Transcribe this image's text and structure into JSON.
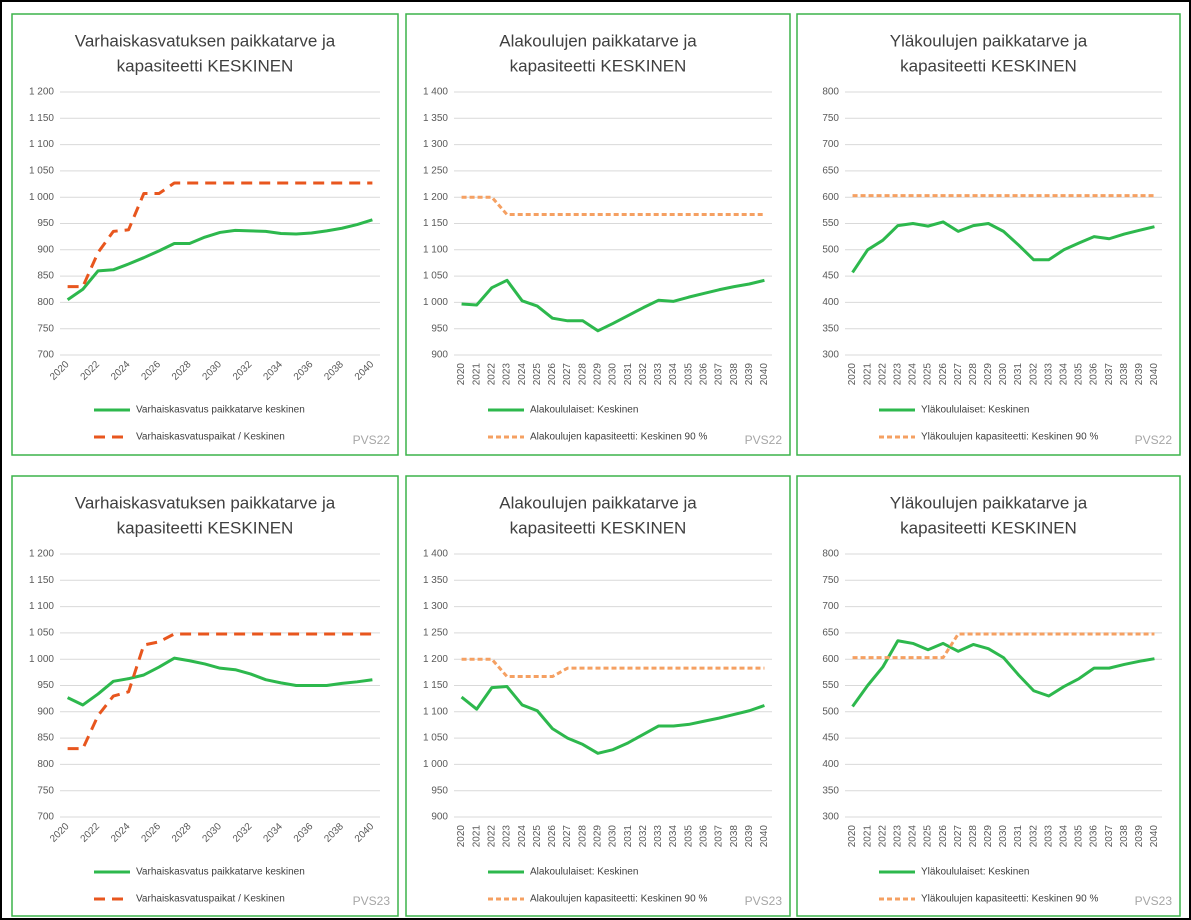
{
  "chart_data": [
    {
      "type": "line",
      "title": [
        "Varhaiskasvatuksen paikkatarve ja",
        "kapasiteetti KESKINEN"
      ],
      "note": "PVS22",
      "categories": [
        "2020",
        null,
        "2022",
        null,
        "2024",
        null,
        "2026",
        null,
        "2028",
        null,
        "2030",
        null,
        "2032",
        null,
        "2034",
        null,
        "2036",
        null,
        "2038",
        null,
        "2040"
      ],
      "ylim": [
        700,
        1200
      ],
      "yticks": [
        700,
        750,
        800,
        850,
        900,
        950,
        {
          "value": 1000,
          "label": "1 000"
        },
        {
          "value": 1050,
          "label": "1 050"
        },
        {
          "value": 1100,
          "label": "1 100"
        },
        {
          "value": 1150,
          "label": "1 150"
        },
        {
          "value": 1200,
          "label": "1 200"
        }
      ],
      "grid": true,
      "series": [
        {
          "name": "Varhaiskasvatus paikkatarve keskinen",
          "color": "#2db84d",
          "line_style": "solid",
          "values": [
            805,
            825,
            860,
            862,
            873,
            885,
            898,
            912,
            912,
            924,
            933,
            937,
            936,
            935,
            931,
            930,
            932,
            936,
            941,
            948,
            957
          ]
        },
        {
          "name": "Varhaiskasvatuspaikat / Keskinen",
          "color": "#e8561e",
          "line_style": "dashed",
          "values": [
            830,
            830,
            895,
            935,
            938,
            1007,
            1007,
            1027,
            1027,
            1027,
            1027,
            1027,
            1027,
            1027,
            1027,
            1027,
            1027,
            1027,
            1027,
            1027,
            1027
          ]
        }
      ]
    },
    {
      "type": "line",
      "title": [
        "Alakoulujen paikkatarve ja",
        "kapasiteetti KESKINEN"
      ],
      "note": "PVS22",
      "categories": [
        "2020",
        "2021",
        "2022",
        "2023",
        "2024",
        "2025",
        "2026",
        "2027",
        "2028",
        "2029",
        "2030",
        "2031",
        "2032",
        "2033",
        "2034",
        "2035",
        "2036",
        "2037",
        "2038",
        "2039",
        "2040"
      ],
      "ylim": [
        900,
        1400
      ],
      "yticks": [
        900,
        950,
        {
          "value": 1000,
          "label": "1 000"
        },
        {
          "value": 1050,
          "label": "1 050"
        },
        {
          "value": 1100,
          "label": "1 100"
        },
        {
          "value": 1150,
          "label": "1 150"
        },
        {
          "value": 1200,
          "label": "1 200"
        },
        {
          "value": 1250,
          "label": "1 250"
        },
        {
          "value": 1300,
          "label": "1 300"
        },
        {
          "value": 1350,
          "label": "1 350"
        },
        {
          "value": 1400,
          "label": "1 400"
        }
      ],
      "grid": true,
      "series": [
        {
          "name": "Alakoululaiset: Keskinen",
          "color": "#2db84d",
          "line_style": "solid",
          "values": [
            997,
            995,
            1028,
            1042,
            1003,
            993,
            970,
            965,
            965,
            946,
            960,
            975,
            990,
            1004,
            1002,
            1010,
            1017,
            1024,
            1030,
            1035,
            1042
          ]
        },
        {
          "name": "Alakoulujen  kapasiteetti: Keskinen 90 %",
          "color": "#f5a062",
          "line_style": "short-dashed",
          "values": [
            1200,
            1200,
            1200,
            1167,
            1167,
            1167,
            1167,
            1167,
            1167,
            1167,
            1167,
            1167,
            1167,
            1167,
            1167,
            1167,
            1167,
            1167,
            1167,
            1167,
            1167
          ]
        }
      ]
    },
    {
      "type": "line",
      "title": [
        "Yläkoulujen paikkatarve ja",
        "kapasiteetti KESKINEN"
      ],
      "note": "PVS22",
      "categories": [
        "2020",
        "2021",
        "2022",
        "2023",
        "2024",
        "2025",
        "2026",
        "2027",
        "2028",
        "2029",
        "2030",
        "2031",
        "2032",
        "2033",
        "2034",
        "2035",
        "2036",
        "2037",
        "2038",
        "2039",
        "2040"
      ],
      "ylim": [
        300,
        800
      ],
      "yticks": [
        300,
        350,
        400,
        450,
        500,
        550,
        600,
        650,
        700,
        750,
        800
      ],
      "grid": true,
      "series": [
        {
          "name": "Yläkoululaiset: Keskinen",
          "color": "#2db84d",
          "line_style": "solid",
          "values": [
            457,
            500,
            518,
            546,
            550,
            545,
            553,
            535,
            546,
            550,
            535,
            509,
            481,
            481,
            500,
            513,
            525,
            521,
            530,
            537,
            544
          ]
        },
        {
          "name": "Yläkoulujen  kapasiteetti: Keskinen 90 %",
          "color": "#f5a062",
          "line_style": "short-dashed",
          "values": [
            603,
            603,
            603,
            603,
            603,
            603,
            603,
            603,
            603,
            603,
            603,
            603,
            603,
            603,
            603,
            603,
            603,
            603,
            603,
            603,
            603
          ]
        }
      ]
    },
    {
      "type": "line",
      "title": [
        "Varhaiskasvatuksen paikkatarve ja",
        "kapasiteetti KESKINEN"
      ],
      "note": "PVS23",
      "categories": [
        "2020",
        null,
        "2022",
        null,
        "2024",
        null,
        "2026",
        null,
        "2028",
        null,
        "2030",
        null,
        "2032",
        null,
        "2034",
        null,
        "2036",
        null,
        "2038",
        null,
        "2040"
      ],
      "ylim": [
        700,
        1200
      ],
      "yticks": [
        700,
        750,
        800,
        850,
        900,
        950,
        {
          "value": 1000,
          "label": "1 000"
        },
        {
          "value": 1050,
          "label": "1 050"
        },
        {
          "value": 1100,
          "label": "1 100"
        },
        {
          "value": 1150,
          "label": "1 150"
        },
        {
          "value": 1200,
          "label": "1 200"
        }
      ],
      "grid": true,
      "series": [
        {
          "name": "Varhaiskasvatus paikkatarve keskinen",
          "color": "#2db84d",
          "line_style": "solid",
          "values": [
            927,
            913,
            934,
            958,
            963,
            970,
            985,
            1002,
            997,
            991,
            983,
            980,
            972,
            961,
            955,
            950,
            950,
            950,
            954,
            957,
            961
          ]
        },
        {
          "name": "Varhaiskasvatuspaikat / Keskinen",
          "color": "#e8561e",
          "line_style": "dashed",
          "values": [
            830,
            830,
            893,
            930,
            938,
            1027,
            1033,
            1048,
            1048,
            1048,
            1048,
            1048,
            1048,
            1048,
            1048,
            1048,
            1048,
            1048,
            1048,
            1048,
            1048
          ]
        }
      ]
    },
    {
      "type": "line",
      "title": [
        "Alakoulujen paikkatarve ja",
        "kapasiteetti KESKINEN"
      ],
      "note": "PVS23",
      "categories": [
        "2020",
        "2021",
        "2022",
        "2023",
        "2024",
        "2025",
        "2026",
        "2027",
        "2028",
        "2029",
        "2030",
        "2031",
        "2032",
        "2033",
        "2034",
        "2035",
        "2036",
        "2037",
        "2038",
        "2039",
        "2040"
      ],
      "ylim": [
        900,
        1400
      ],
      "yticks": [
        900,
        950,
        {
          "value": 1000,
          "label": "1 000"
        },
        {
          "value": 1050,
          "label": "1 050"
        },
        {
          "value": 1100,
          "label": "1 100"
        },
        {
          "value": 1150,
          "label": "1 150"
        },
        {
          "value": 1200,
          "label": "1 200"
        },
        {
          "value": 1250,
          "label": "1 250"
        },
        {
          "value": 1300,
          "label": "1 300"
        },
        {
          "value": 1350,
          "label": "1 350"
        },
        {
          "value": 1400,
          "label": "1 400"
        }
      ],
      "grid": true,
      "series": [
        {
          "name": "Alakoululaiset: Keskinen",
          "color": "#2db84d",
          "line_style": "solid",
          "values": [
            1128,
            1105,
            1146,
            1148,
            1113,
            1102,
            1068,
            1050,
            1038,
            1021,
            1028,
            1041,
            1057,
            1073,
            1073,
            1076,
            1082,
            1088,
            1095,
            1102,
            1112
          ]
        },
        {
          "name": "Alakoulujen  kapasiteetti: Keskinen 90 %",
          "color": "#f5a062",
          "line_style": "short-dashed",
          "values": [
            1200,
            1200,
            1200,
            1167,
            1167,
            1167,
            1167,
            1183,
            1183,
            1183,
            1183,
            1183,
            1183,
            1183,
            1183,
            1183,
            1183,
            1183,
            1183,
            1183,
            1183
          ]
        }
      ]
    },
    {
      "type": "line",
      "title": [
        "Yläkoulujen paikkatarve ja",
        "kapasiteetti KESKINEN"
      ],
      "note": "PVS23",
      "categories": [
        "2020",
        "2021",
        "2022",
        "2023",
        "2024",
        "2025",
        "2026",
        "2027",
        "2028",
        "2029",
        "2030",
        "2031",
        "2032",
        "2033",
        "2034",
        "2035",
        "2036",
        "2037",
        "2038",
        "2039",
        "2040"
      ],
      "ylim": [
        300,
        800
      ],
      "yticks": [
        300,
        350,
        400,
        450,
        500,
        550,
        600,
        650,
        700,
        750,
        800
      ],
      "grid": true,
      "series": [
        {
          "name": "Yläkoululaiset: Keskinen",
          "color": "#2db84d",
          "line_style": "solid",
          "values": [
            510,
            550,
            585,
            635,
            630,
            618,
            630,
            615,
            628,
            620,
            603,
            570,
            540,
            530,
            548,
            563,
            583,
            583,
            590,
            596,
            601
          ]
        },
        {
          "name": "Yläkoulujen  kapasiteetti: Keskinen 90 %",
          "color": "#f5a062",
          "line_style": "short-dashed",
          "values": [
            603,
            603,
            603,
            603,
            603,
            603,
            603,
            648,
            648,
            648,
            648,
            648,
            648,
            648,
            648,
            648,
            648,
            648,
            648,
            648,
            648
          ]
        }
      ]
    }
  ]
}
